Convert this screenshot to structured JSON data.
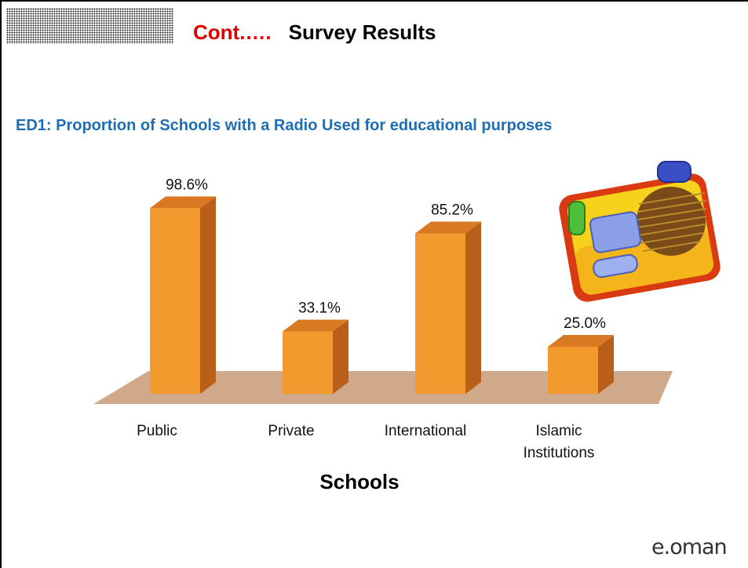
{
  "title": {
    "prefix": "Cont.….",
    "main": "Survey Results"
  },
  "subtitle": "ED1: Proportion of Schools with a Radio Used for educational purposes",
  "chart_data": {
    "type": "bar",
    "title": "ED1: Proportion of Schools with a Radio Used for educational purposes",
    "xlabel": "Schools",
    "ylabel": "",
    "categories": [
      "Public",
      "Private",
      "International",
      "Islamic Institutions"
    ],
    "category_lines": [
      [
        "Public"
      ],
      [
        "Private"
      ],
      [
        "International"
      ],
      [
        "Islamic",
        "Institutions"
      ]
    ],
    "values": [
      98.6,
      33.1,
      85.2,
      25.0
    ],
    "value_labels": [
      "98.6%",
      "33.1%",
      "85.2%",
      "25.0%"
    ],
    "ylim": [
      0,
      100
    ],
    "grid": false,
    "legend": "none",
    "style": "3d",
    "colors": {
      "bar_front": "#f39a2e",
      "bar_side": "#b8601a",
      "bar_top": "#d97a22",
      "floor": "#c89a76"
    }
  },
  "radio_icon": "radio-icon",
  "logo": "e.oman"
}
